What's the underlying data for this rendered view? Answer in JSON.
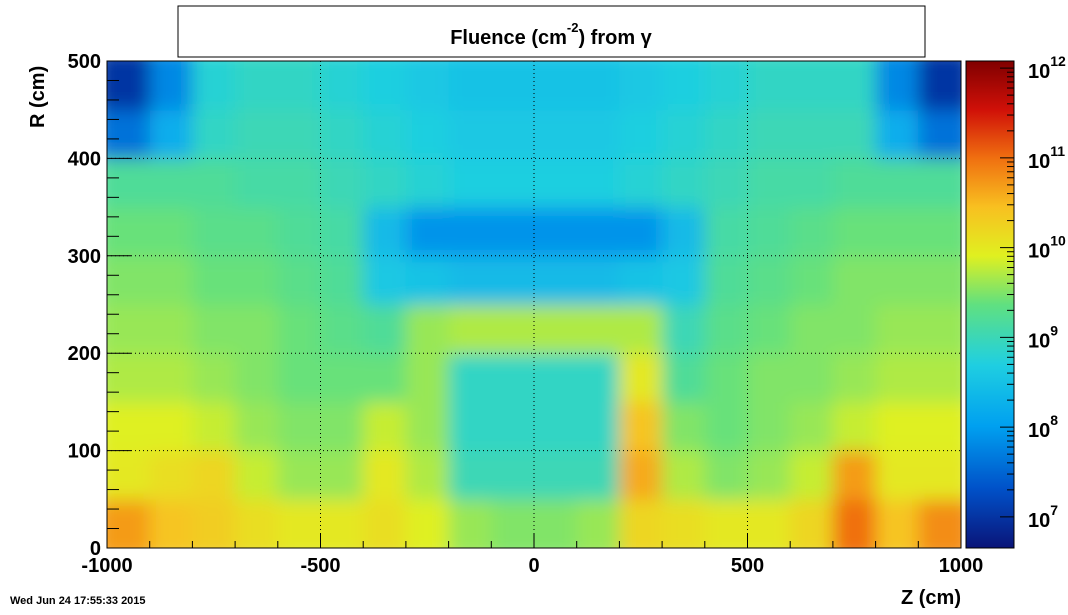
{
  "chart_data": {
    "type": "heatmap",
    "title": [
      "Fluence (cm",
      "-2",
      ") from   γ"
    ],
    "xlabel": "Z (cm)",
    "ylabel": "R (cm)",
    "xlim": [
      -1000,
      1000
    ],
    "xticks": [
      -1000,
      -500,
      0,
      500,
      1000
    ],
    "ylim": [
      0,
      500
    ],
    "yticks": [
      0,
      100,
      200,
      300,
      400,
      500
    ],
    "grid": true,
    "zlog": true,
    "zlim": [
      4500000,
      1200000000000
    ],
    "zticks": [
      {
        "value": 10000000,
        "label": "10",
        "exponent": "7"
      },
      {
        "value": 100000000,
        "label": "10",
        "exponent": "8"
      },
      {
        "value": 1000000000,
        "label": "10",
        "exponent": "9"
      },
      {
        "value": 10000000000,
        "label": "10",
        "exponent": "10"
      },
      {
        "value": 100000000000,
        "label": "10",
        "exponent": "11"
      },
      {
        "value": 1000000000000,
        "label": "10",
        "exponent": "12"
      }
    ],
    "xbins": [
      -1000,
      -900,
      -800,
      -700,
      -600,
      -500,
      -400,
      -300,
      -200,
      -100,
      0,
      100,
      200,
      300,
      400,
      500,
      600,
      700,
      800,
      900,
      1000
    ],
    "ybins": [
      0,
      50,
      100,
      150,
      200,
      250,
      300,
      350,
      400,
      450,
      500
    ],
    "z": [
      [
        50000000000.0,
        25000000000.0,
        20000000000.0,
        13000000000.0,
        10000000000.0,
        10000000000.0,
        13000000000.0,
        8000000000.0,
        4000000000.0,
        3200000000.0,
        3200000000.0,
        4000000000.0,
        16000000000.0,
        13000000000.0,
        10000000000.0,
        10000000000.0,
        16000000000.0,
        100000000000.0,
        25000000000.0,
        63000000000.0
      ],
      [
        10000000000.0,
        13000000000.0,
        16000000000.0,
        6300000000.0,
        4000000000.0,
        4000000000.0,
        10000000000.0,
        5000000000.0,
        1000000000.0,
        1000000000.0,
        1000000000.0,
        1000000000.0,
        40000000000.0,
        5000000000.0,
        3200000000.0,
        4000000000.0,
        6300000000.0,
        50000000000.0,
        10000000000.0,
        10000000000.0
      ],
      [
        8000000000.0,
        8000000000.0,
        6300000000.0,
        4000000000.0,
        3200000000.0,
        3200000000.0,
        6300000000.0,
        4000000000.0,
        800000000.0,
        800000000.0,
        800000000.0,
        800000000.0,
        25000000000.0,
        3200000000.0,
        2500000000.0,
        3200000000.0,
        4000000000.0,
        6300000000.0,
        8000000000.0,
        8000000000.0
      ],
      [
        5000000000.0,
        5000000000.0,
        4000000000.0,
        3200000000.0,
        2500000000.0,
        2500000000.0,
        2500000000.0,
        4000000000.0,
        800000000.0,
        800000000.0,
        800000000.0,
        800000000.0,
        10000000000.0,
        1600000000.0,
        2500000000.0,
        3200000000.0,
        3200000000.0,
        4000000000.0,
        5000000000.0,
        5000000000.0
      ],
      [
        4000000000.0,
        4000000000.0,
        3200000000.0,
        3200000000.0,
        2500000000.0,
        2000000000.0,
        1600000000.0,
        4000000000.0,
        5000000000.0,
        5000000000.0,
        5000000000.0,
        5000000000.0,
        5000000000.0,
        1000000000.0,
        2000000000.0,
        2500000000.0,
        3200000000.0,
        3200000000.0,
        4000000000.0,
        4000000000.0
      ],
      [
        3200000000.0,
        3200000000.0,
        2500000000.0,
        2500000000.0,
        2000000000.0,
        1600000000.0,
        400000000.0,
        320000000.0,
        250000000.0,
        250000000.0,
        250000000.0,
        250000000.0,
        320000000.0,
        400000000.0,
        1600000000.0,
        2000000000.0,
        2500000000.0,
        3200000000.0,
        3200000000.0,
        3200000000.0
      ],
      [
        2500000000.0,
        2500000000.0,
        2000000000.0,
        2000000000.0,
        1600000000.0,
        1300000000.0,
        250000000.0,
        80000000.0,
        80000000.0,
        80000000.0,
        80000000.0,
        80000000.0,
        80000000.0,
        250000000.0,
        1300000000.0,
        1600000000.0,
        2000000000.0,
        2500000000.0,
        2500000000.0,
        2500000000.0
      ],
      [
        1600000000.0,
        1600000000.0,
        1600000000.0,
        1300000000.0,
        1300000000.0,
        1000000000.0,
        800000000.0,
        630000000.0,
        500000000.0,
        500000000.0,
        500000000.0,
        500000000.0,
        630000000.0,
        800000000.0,
        1000000000.0,
        1300000000.0,
        1300000000.0,
        1600000000.0,
        1600000000.0,
        1600000000.0
      ],
      [
        40000000.0,
        160000000.0,
        800000000.0,
        1000000000.0,
        1000000000.0,
        800000000.0,
        630000000.0,
        500000000.0,
        400000000.0,
        400000000.0,
        400000000.0,
        400000000.0,
        500000000.0,
        630000000.0,
        800000000.0,
        1000000000.0,
        1000000000.0,
        1000000000.0,
        160000000.0,
        40000000.0
      ],
      [
        10000000.0,
        63000000.0,
        630000000.0,
        800000000.0,
        800000000.0,
        630000000.0,
        500000000.0,
        400000000.0,
        320000000.0,
        320000000.0,
        320000000.0,
        320000000.0,
        400000000.0,
        500000000.0,
        630000000.0,
        800000000.0,
        800000000.0,
        800000000.0,
        63000000.0,
        10000000.0
      ]
    ]
  },
  "timestamp": "Wed Jun 24 17:55:33 2015"
}
